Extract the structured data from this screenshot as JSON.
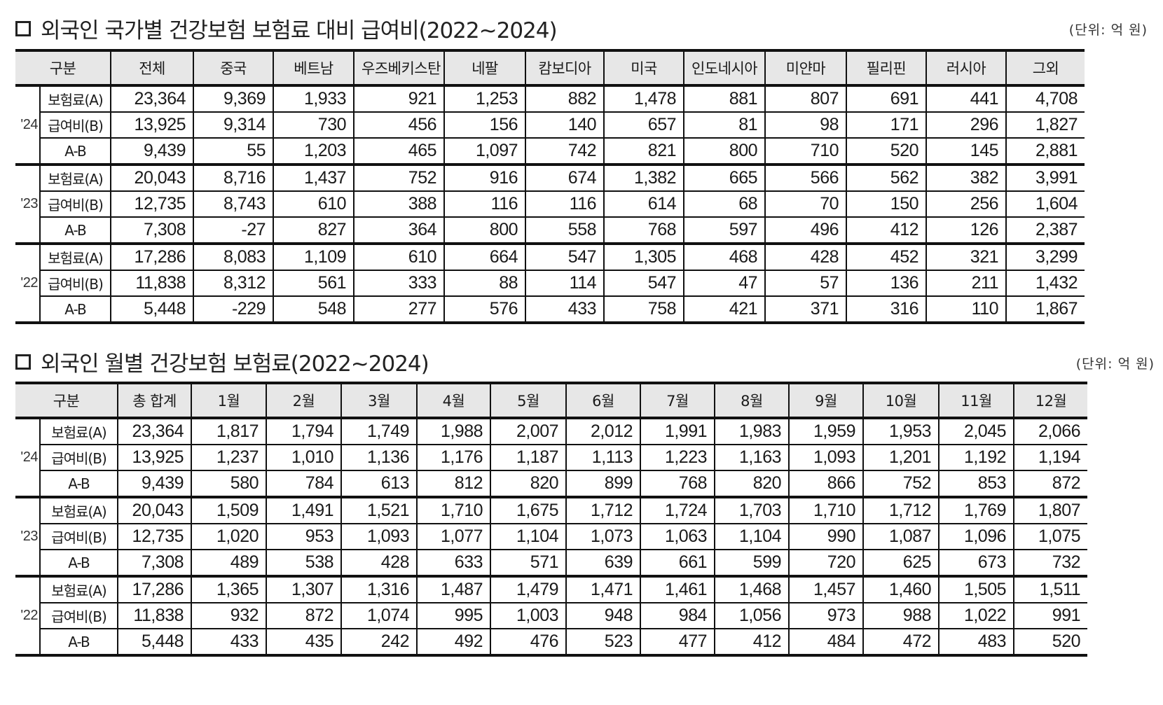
{
  "table1": {
    "title": "외국인 국가별 건강보험 보험료 대비 급여비(2022~2024)",
    "unit": "(단위: 억 원)",
    "headers": [
      "구분",
      "전체",
      "중국",
      "베트남",
      "우즈베키스탄",
      "네팔",
      "캄보디아",
      "미국",
      "인도네시아",
      "미얀마",
      "필리핀",
      "러시아",
      "그외"
    ],
    "groups": [
      {
        "year": "'24",
        "rows": [
          {
            "label": "보험료(A)",
            "values": [
              "23,364",
              "9,369",
              "1,933",
              "921",
              "1,253",
              "882",
              "1,478",
              "881",
              "807",
              "691",
              "441",
              "4,708"
            ]
          },
          {
            "label": "급여비(B)",
            "values": [
              "13,925",
              "9,314",
              "730",
              "456",
              "156",
              "140",
              "657",
              "81",
              "98",
              "171",
              "296",
              "1,827"
            ]
          },
          {
            "label": "A-B",
            "values": [
              "9,439",
              "55",
              "1,203",
              "465",
              "1,097",
              "742",
              "821",
              "800",
              "710",
              "520",
              "145",
              "2,881"
            ]
          }
        ]
      },
      {
        "year": "'23",
        "rows": [
          {
            "label": "보험료(A)",
            "values": [
              "20,043",
              "8,716",
              "1,437",
              "752",
              "916",
              "674",
              "1,382",
              "665",
              "566",
              "562",
              "382",
              "3,991"
            ]
          },
          {
            "label": "급여비(B)",
            "values": [
              "12,735",
              "8,743",
              "610",
              "388",
              "116",
              "116",
              "614",
              "68",
              "70",
              "150",
              "256",
              "1,604"
            ]
          },
          {
            "label": "A-B",
            "values": [
              "7,308",
              "-27",
              "827",
              "364",
              "800",
              "558",
              "768",
              "597",
              "496",
              "412",
              "126",
              "2,387"
            ]
          }
        ]
      },
      {
        "year": "'22",
        "rows": [
          {
            "label": "보험료(A)",
            "values": [
              "17,286",
              "8,083",
              "1,109",
              "610",
              "664",
              "547",
              "1,305",
              "468",
              "428",
              "452",
              "321",
              "3,299"
            ]
          },
          {
            "label": "급여비(B)",
            "values": [
              "11,838",
              "8,312",
              "561",
              "333",
              "88",
              "114",
              "547",
              "47",
              "57",
              "136",
              "211",
              "1,432"
            ]
          },
          {
            "label": "A-B",
            "values": [
              "5,448",
              "-229",
              "548",
              "277",
              "576",
              "433",
              "758",
              "421",
              "371",
              "316",
              "110",
              "1,867"
            ]
          }
        ]
      }
    ]
  },
  "table2": {
    "title": "외국인 월별 건강보험 보험료(2022~2024)",
    "unit": "(단위: 억 원)",
    "headers": [
      "구분",
      "총 합계",
      "1월",
      "2월",
      "3월",
      "4월",
      "5월",
      "6월",
      "7월",
      "8월",
      "9월",
      "10월",
      "11월",
      "12월"
    ],
    "groups": [
      {
        "year": "'24",
        "rows": [
          {
            "label": "보험료(A)",
            "values": [
              "23,364",
              "1,817",
              "1,794",
              "1,749",
              "1,988",
              "2,007",
              "2,012",
              "1,991",
              "1,983",
              "1,959",
              "1,953",
              "2,045",
              "2,066"
            ]
          },
          {
            "label": "급여비(B)",
            "values": [
              "13,925",
              "1,237",
              "1,010",
              "1,136",
              "1,176",
              "1,187",
              "1,113",
              "1,223",
              "1,163",
              "1,093",
              "1,201",
              "1,192",
              "1,194"
            ]
          },
          {
            "label": "A-B",
            "values": [
              "9,439",
              "580",
              "784",
              "613",
              "812",
              "820",
              "899",
              "768",
              "820",
              "866",
              "752",
              "853",
              "872"
            ]
          }
        ]
      },
      {
        "year": "'23",
        "rows": [
          {
            "label": "보험료(A)",
            "values": [
              "20,043",
              "1,509",
              "1,491",
              "1,521",
              "1,710",
              "1,675",
              "1,712",
              "1,724",
              "1,703",
              "1,710",
              "1,712",
              "1,769",
              "1,807"
            ]
          },
          {
            "label": "급여비(B)",
            "values": [
              "12,735",
              "1,020",
              "953",
              "1,093",
              "1,077",
              "1,104",
              "1,073",
              "1,063",
              "1,104",
              "990",
              "1,087",
              "1,096",
              "1,075"
            ]
          },
          {
            "label": "A-B",
            "values": [
              "7,308",
              "489",
              "538",
              "428",
              "633",
              "571",
              "639",
              "661",
              "599",
              "720",
              "625",
              "673",
              "732"
            ]
          }
        ]
      },
      {
        "year": "'22",
        "rows": [
          {
            "label": "보험료(A)",
            "values": [
              "17,286",
              "1,365",
              "1,307",
              "1,316",
              "1,487",
              "1,479",
              "1,471",
              "1,461",
              "1,468",
              "1,457",
              "1,460",
              "1,505",
              "1,511"
            ]
          },
          {
            "label": "급여비(B)",
            "values": [
              "11,838",
              "932",
              "872",
              "1,074",
              "995",
              "1,003",
              "948",
              "984",
              "1,056",
              "973",
              "988",
              "1,022",
              "991"
            ]
          },
          {
            "label": "A-B",
            "values": [
              "5,448",
              "433",
              "435",
              "242",
              "492",
              "476",
              "523",
              "477",
              "412",
              "484",
              "472",
              "483",
              "520"
            ]
          }
        ]
      }
    ]
  }
}
